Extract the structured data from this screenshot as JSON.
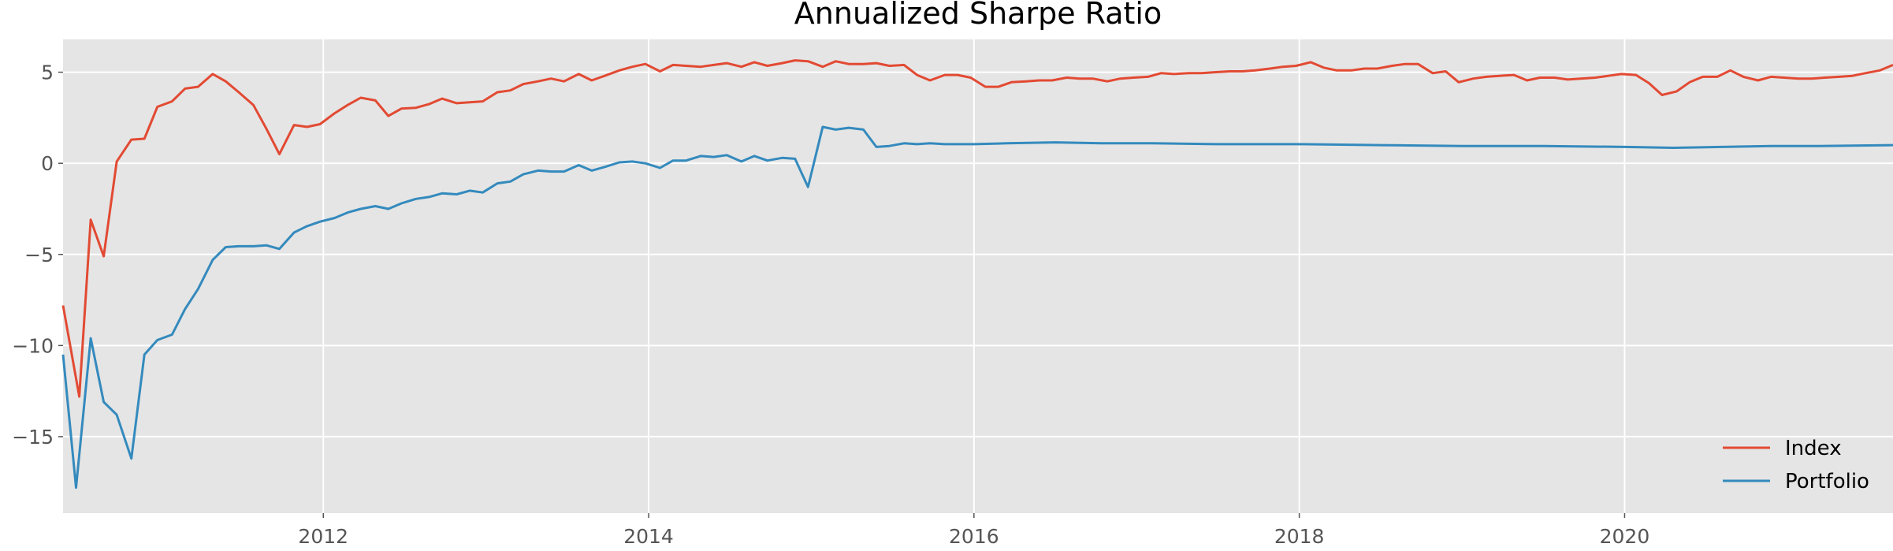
{
  "chart_data": {
    "type": "line",
    "title": "Annualized Sharpe Ratio",
    "xlabel": "",
    "ylabel": "",
    "x_range": [
      2010.4,
      2021.65
    ],
    "ylim": [
      -19.2,
      6.8
    ],
    "x_ticks": [
      2012,
      2014,
      2016,
      2018,
      2020
    ],
    "x_tick_labels": [
      "2012",
      "2014",
      "2016",
      "2018",
      "2020"
    ],
    "y_ticks": [
      5,
      0,
      -5,
      -10,
      -15
    ],
    "y_tick_labels": [
      "5",
      "0",
      "−5",
      "−10",
      "−15"
    ],
    "grid": true,
    "legend_position": "lower-right",
    "series": [
      {
        "name": "Index",
        "color": "#E24A33",
        "x": [
          2010.4,
          2010.5,
          2010.57,
          2010.65,
          2010.73,
          2010.82,
          2010.9,
          2010.98,
          2011.07,
          2011.15,
          2011.23,
          2011.32,
          2011.4,
          2011.48,
          2011.57,
          2011.65,
          2011.73,
          2011.82,
          2011.9,
          2011.98,
          2012.07,
          2012.15,
          2012.23,
          2012.32,
          2012.4,
          2012.48,
          2012.57,
          2012.65,
          2012.73,
          2012.82,
          2012.9,
          2012.98,
          2013.07,
          2013.15,
          2013.23,
          2013.32,
          2013.4,
          2013.48,
          2013.57,
          2013.65,
          2013.73,
          2013.82,
          2013.9,
          2013.98,
          2014.07,
          2014.15,
          2014.23,
          2014.32,
          2014.4,
          2014.48,
          2014.57,
          2014.65,
          2014.73,
          2014.82,
          2014.9,
          2014.98,
          2015.07,
          2015.15,
          2015.23,
          2015.32,
          2015.4,
          2015.48,
          2015.57,
          2015.65,
          2015.73,
          2015.82,
          2015.9,
          2015.98,
          2016.07,
          2016.15,
          2016.23,
          2016.32,
          2016.4,
          2016.48,
          2016.57,
          2016.65,
          2016.73,
          2016.82,
          2016.9,
          2016.98,
          2017.07,
          2017.15,
          2017.23,
          2017.32,
          2017.4,
          2017.48,
          2017.57,
          2017.65,
          2017.73,
          2017.82,
          2017.9,
          2017.98,
          2018.07,
          2018.15,
          2018.23,
          2018.32,
          2018.4,
          2018.48,
          2018.57,
          2018.65,
          2018.73,
          2018.82,
          2018.9,
          2018.98,
          2019.07,
          2019.15,
          2019.23,
          2019.32,
          2019.4,
          2019.48,
          2019.57,
          2019.65,
          2019.73,
          2019.82,
          2019.9,
          2019.98,
          2020.07,
          2020.15,
          2020.23,
          2020.32,
          2020.4,
          2020.48,
          2020.57,
          2020.65,
          2020.73,
          2020.82,
          2020.9,
          2020.98,
          2021.07,
          2021.15,
          2021.23,
          2021.32,
          2021.4,
          2021.48,
          2021.57,
          2021.65
        ],
        "y": [
          -7.8,
          -12.8,
          -3.1,
          -5.1,
          0.1,
          1.3,
          1.35,
          3.1,
          3.4,
          4.1,
          4.2,
          4.9,
          4.5,
          3.9,
          3.2,
          1.9,
          0.5,
          2.1,
          2.0,
          2.15,
          2.75,
          3.2,
          3.6,
          3.45,
          2.6,
          3.0,
          3.05,
          3.25,
          3.55,
          3.3,
          3.35,
          3.4,
          3.9,
          4.0,
          4.35,
          4.5,
          4.65,
          4.5,
          4.9,
          4.55,
          4.8,
          5.1,
          5.3,
          5.45,
          5.05,
          5.4,
          5.35,
          5.3,
          5.4,
          5.5,
          5.3,
          5.55,
          5.35,
          5.5,
          5.65,
          5.6,
          5.3,
          5.6,
          5.45,
          5.45,
          5.5,
          5.35,
          5.4,
          4.85,
          4.55,
          4.85,
          4.85,
          4.7,
          4.2,
          4.2,
          4.45,
          4.5,
          4.55,
          4.55,
          4.7,
          4.65,
          4.65,
          4.5,
          4.65,
          4.7,
          4.75,
          4.95,
          4.9,
          4.95,
          4.95,
          5.0,
          5.05,
          5.05,
          5.1,
          5.2,
          5.3,
          5.35,
          5.55,
          5.25,
          5.1,
          5.1,
          5.2,
          5.2,
          5.35,
          5.45,
          5.45,
          4.95,
          5.05,
          4.45,
          4.65,
          4.75,
          4.8,
          4.85,
          4.55,
          4.7,
          4.7,
          4.6,
          4.65,
          4.7,
          4.8,
          4.9,
          4.85,
          4.4,
          3.75,
          3.95,
          4.45,
          4.75,
          4.75,
          5.1,
          4.75,
          4.55,
          4.75,
          4.7,
          4.65,
          4.65,
          4.7,
          4.75,
          4.8,
          4.95,
          5.1,
          5.4
        ]
      },
      {
        "name": "Portfolio",
        "color": "#348ABD",
        "x": [
          2010.4,
          2010.48,
          2010.57,
          2010.65,
          2010.73,
          2010.82,
          2010.9,
          2010.98,
          2011.07,
          2011.15,
          2011.23,
          2011.32,
          2011.4,
          2011.48,
          2011.57,
          2011.65,
          2011.73,
          2011.82,
          2011.9,
          2011.98,
          2012.07,
          2012.15,
          2012.23,
          2012.32,
          2012.4,
          2012.48,
          2012.57,
          2012.65,
          2012.73,
          2012.82,
          2012.9,
          2012.98,
          2013.07,
          2013.15,
          2013.23,
          2013.32,
          2013.4,
          2013.48,
          2013.57,
          2013.65,
          2013.73,
          2013.82,
          2013.9,
          2013.98,
          2014.07,
          2014.15,
          2014.23,
          2014.32,
          2014.4,
          2014.48,
          2014.57,
          2014.65,
          2014.73,
          2014.82,
          2014.9,
          2014.98,
          2015.07,
          2015.15,
          2015.23,
          2015.32,
          2015.4,
          2015.48,
          2015.57,
          2015.65,
          2015.73,
          2015.82,
          2015.9,
          2016.0,
          2016.2,
          2016.5,
          2016.8,
          2017.1,
          2017.5,
          2018.0,
          2018.5,
          2019.0,
          2019.5,
          2020.0,
          2020.3,
          2020.6,
          2020.9,
          2021.2,
          2021.65
        ],
        "y": [
          -10.5,
          -17.8,
          -9.6,
          -13.1,
          -13.8,
          -16.2,
          -10.5,
          -9.7,
          -9.4,
          -8.0,
          -6.9,
          -5.3,
          -4.6,
          -4.55,
          -4.55,
          -4.5,
          -4.7,
          -3.8,
          -3.45,
          -3.2,
          -3.0,
          -2.7,
          -2.5,
          -2.35,
          -2.5,
          -2.2,
          -1.95,
          -1.85,
          -1.65,
          -1.7,
          -1.5,
          -1.6,
          -1.1,
          -1.0,
          -0.6,
          -0.4,
          -0.45,
          -0.45,
          -0.1,
          -0.4,
          -0.2,
          0.05,
          0.1,
          0.0,
          -0.25,
          0.15,
          0.15,
          0.4,
          0.35,
          0.45,
          0.1,
          0.4,
          0.15,
          0.3,
          0.25,
          -1.3,
          2.0,
          1.85,
          1.95,
          1.85,
          0.9,
          0.95,
          1.1,
          1.05,
          1.1,
          1.05,
          1.05,
          1.05,
          1.1,
          1.15,
          1.1,
          1.1,
          1.05,
          1.05,
          1.0,
          0.95,
          0.95,
          0.9,
          0.85,
          0.9,
          0.95,
          0.95,
          1.0
        ]
      }
    ]
  }
}
